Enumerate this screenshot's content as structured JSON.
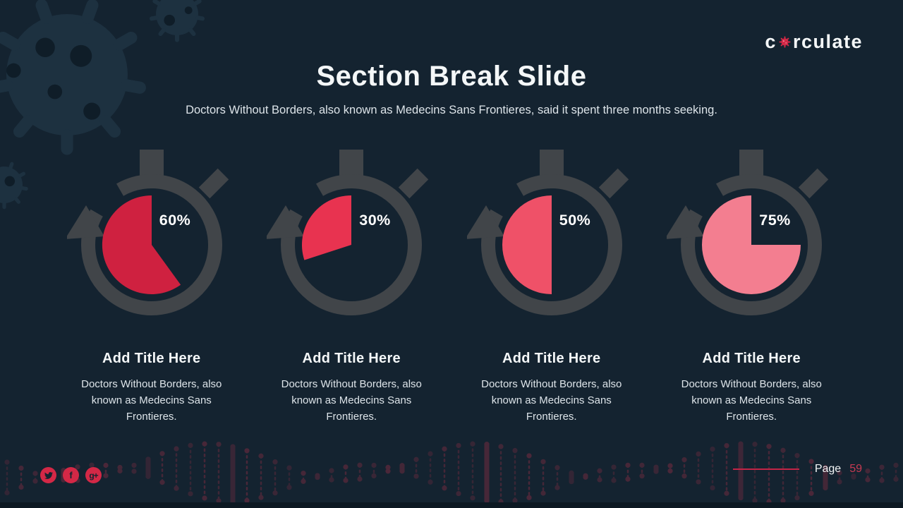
{
  "slide": {
    "logo": {
      "pre": "c",
      "post": "rculate"
    },
    "title": "Section Break Slide",
    "subtitle": "Doctors Without Borders, also known as Medecins Sans Frontieres, said it spent three months seeking.",
    "footer": {
      "page_label": "Page",
      "page_number": "59"
    },
    "social": {
      "items": [
        {
          "name": "twitter"
        },
        {
          "name": "facebook",
          "glyph": "f"
        },
        {
          "name": "google-plus",
          "glyph": "g+"
        }
      ]
    }
  },
  "colors": {
    "background": "#142330",
    "stopwatch_gray": "#414549",
    "accent_red": "#d32846",
    "footer_red": "#c22446",
    "text_white": "#f4f7f8",
    "text_muted": "#dde4e9"
  },
  "chart_data": {
    "type": "pie",
    "title": "Section Break Slide",
    "legend_position": "none",
    "note": "four stopwatch pie charts, wedge fills counterclockwise from 12 o'clock",
    "charts": [
      {
        "percent": 60,
        "label": "60%",
        "color": "#cf2140",
        "title": "Add Title Here",
        "description": "Doctors Without Borders, also known as Medecins Sans Frontieres."
      },
      {
        "percent": 30,
        "label": "30%",
        "color": "#e83350",
        "title": "Add Title Here",
        "description": "Doctors Without Borders, also known as Medecins Sans Frontieres."
      },
      {
        "percent": 50,
        "label": "50%",
        "color": "#ef5168",
        "title": "Add Title Here",
        "description": "Doctors Without Borders, also known as Medecins Sans Frontieres."
      },
      {
        "percent": 75,
        "label": "75%",
        "color": "#f37e90",
        "title": "Add Title Here",
        "description": "Doctors Without Borders, also known as Medecins Sans Frontieres."
      }
    ]
  }
}
